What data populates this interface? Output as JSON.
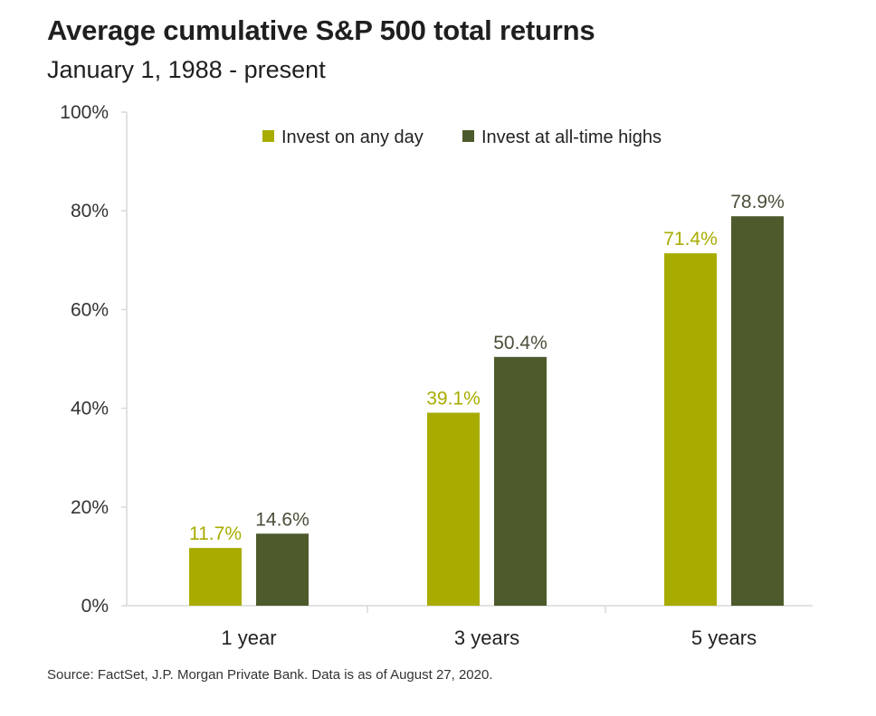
{
  "chart_data": {
    "type": "bar",
    "title": "Average cumulative S&P 500 total returns",
    "subtitle": "January 1, 1988 - present",
    "source": "Source: FactSet, J.P. Morgan Private Bank. Data is as of August 27, 2020.",
    "categories": [
      "1 year",
      "3 years",
      "5 years"
    ],
    "series": [
      {
        "name": "Invest on any day",
        "color": "#a8ac00",
        "values": [
          11.7,
          39.1,
          71.4
        ],
        "labels": [
          "11.7%",
          "39.1%",
          "71.4%"
        ]
      },
      {
        "name": "Invest at all-time highs",
        "color": "#4d5a2c",
        "values": [
          14.6,
          50.4,
          78.9
        ],
        "labels": [
          "14.6%",
          "50.4%",
          "78.9%"
        ]
      }
    ],
    "ylim": [
      0,
      100
    ],
    "yticks": [
      0,
      20,
      40,
      60,
      80,
      100
    ],
    "ytick_labels": [
      "0%",
      "20%",
      "40%",
      "60%",
      "80%",
      "100%"
    ],
    "grid": false,
    "legend_position": "top-right"
  }
}
